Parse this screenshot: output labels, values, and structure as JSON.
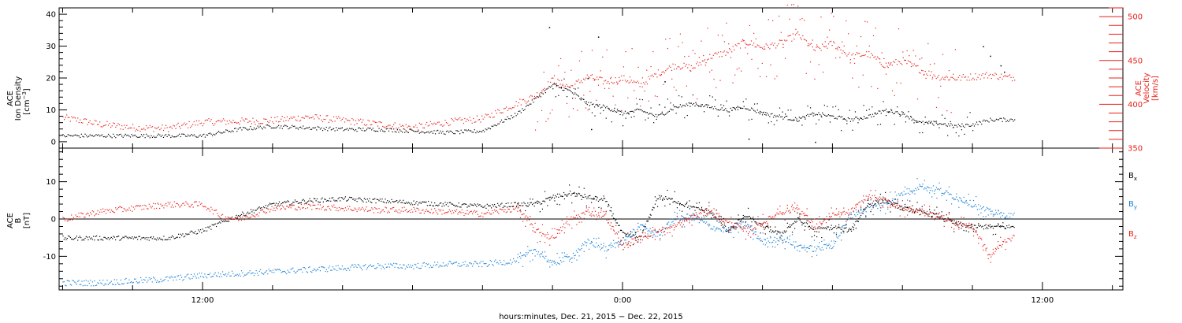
{
  "colors": {
    "black_series": "#000000",
    "velocity": "#e8201a",
    "by": "#1c80d4",
    "bz": "#e8201a",
    "axis": "#000000"
  },
  "x_axis": {
    "title": "hours:minutes, Dec. 21, 2015 − Dec. 22, 2015",
    "range_hours": [
      7.9,
      38.3
    ],
    "major_ticks": [
      {
        "hours": 12,
        "label": "12:00"
      },
      {
        "hours": 24,
        "label": "0:00"
      },
      {
        "hours": 36,
        "label": "12:00"
      }
    ],
    "minor_step_hours": 2
  },
  "chart_data": [
    {
      "type": "scatter",
      "panel": "top",
      "ylabel_left": {
        "line1": "ACE",
        "line2": "Ion Density",
        "units": "[cm",
        "units_sup": "−3",
        "units_end": "]"
      },
      "ylabel_right": {
        "line1": "ACE",
        "line2": "Velocity",
        "units": "[km/s]"
      },
      "ylim_left": [
        -2,
        42
      ],
      "yticks_left": [
        0,
        10,
        20,
        30,
        40
      ],
      "ylim_right": [
        350,
        510
      ],
      "yticks_right": [
        350,
        400,
        450,
        500
      ],
      "series": [
        {
          "key": "density",
          "axis": "left",
          "x": [
            8,
            9,
            10,
            11,
            12,
            13,
            14,
            15,
            16,
            17,
            18,
            19,
            20,
            21,
            22,
            22.5,
            23,
            23.5,
            24,
            24.5,
            25,
            25.5,
            26,
            26.5,
            27,
            27.5,
            28,
            28.5,
            29,
            29.5,
            30,
            30.5,
            31,
            31.5,
            32,
            32.5,
            33,
            33.5,
            34,
            34.5,
            35
          ],
          "y": [
            2,
            2,
            2,
            2,
            2,
            4,
            5,
            4.5,
            4,
            4,
            3.5,
            3,
            3.5,
            9,
            18,
            16,
            12,
            11,
            9,
            10,
            8,
            11,
            12,
            11,
            10,
            11,
            9,
            8,
            7,
            9,
            8,
            7,
            8,
            10,
            9,
            6,
            6,
            5,
            5.5,
            7,
            7
          ],
          "outliers": [
            {
              "x": 21.9,
              "y": 36
            },
            {
              "x": 23.3,
              "y": 33
            },
            {
              "x": 23.0,
              "y": 20
            },
            {
              "x": 25.2,
              "y": 19
            },
            {
              "x": 34.3,
              "y": 30
            },
            {
              "x": 34.5,
              "y": 27
            },
            {
              "x": 34.8,
              "y": 24
            },
            {
              "x": 34.9,
              "y": 22
            },
            {
              "x": 27.6,
              "y": 1
            },
            {
              "x": 29.5,
              "y": 0
            },
            {
              "x": 23.1,
              "y": 4
            }
          ]
        },
        {
          "key": "velocity",
          "axis": "right",
          "x": [
            8,
            8.5,
            9,
            10,
            11,
            12,
            13,
            14,
            15,
            16,
            17,
            18,
            19,
            20,
            21,
            21.5,
            22,
            22.5,
            23,
            23.5,
            24,
            24.5,
            25,
            25.5,
            26,
            26.5,
            27,
            27.5,
            28,
            28.5,
            29,
            29.5,
            30,
            30.5,
            31,
            31.5,
            32,
            32.5,
            33,
            33.5,
            34,
            34.5,
            35
          ],
          "y": [
            385,
            382,
            378,
            374,
            373,
            380,
            381,
            382,
            386,
            382,
            378,
            374,
            380,
            384,
            402,
            410,
            428,
            420,
            432,
            426,
            430,
            422,
            436,
            445,
            442,
            455,
            460,
            472,
            465,
            470,
            480,
            462,
            470,
            455,
            458,
            445,
            450,
            440,
            432,
            430,
            432,
            434,
            431
          ],
          "spread": 25
        }
      ]
    },
    {
      "type": "scatter",
      "panel": "bottom",
      "ylabel_left": {
        "line1": "ACE",
        "line2": "B",
        "units": "[nT]"
      },
      "ylim": [
        -19,
        19
      ],
      "yticks": [
        -10,
        0,
        10
      ],
      "zero_line": true,
      "legend": [
        {
          "label": "B",
          "sub": "x",
          "color": "#000000"
        },
        {
          "label": "B",
          "sub": "y",
          "color": "#1c80d4"
        },
        {
          "label": "B",
          "sub": "z",
          "color": "#e8201a"
        }
      ],
      "series": [
        {
          "key": "Bx",
          "x": [
            8,
            9,
            10,
            11,
            12,
            12.5,
            13,
            14,
            15,
            16,
            17,
            18,
            19,
            20,
            21,
            21.5,
            22,
            22.5,
            23,
            23.5,
            24,
            24.5,
            25,
            25.5,
            26,
            26.5,
            27,
            27.5,
            28,
            28.5,
            29,
            29.5,
            30,
            30.5,
            31,
            31.5,
            32,
            32.5,
            33,
            33.5,
            34,
            34.5,
            35
          ],
          "y": [
            -5,
            -5,
            -5,
            -5,
            -3,
            -1,
            1,
            4,
            5,
            5.5,
            5,
            4.5,
            4,
            3.5,
            4,
            4,
            6,
            7,
            6,
            5,
            -4,
            -5,
            6,
            5,
            3,
            2,
            -3,
            1,
            -2,
            -4,
            0,
            -3,
            -2,
            -3,
            4,
            5,
            3,
            2,
            1,
            -1,
            -2,
            -2,
            -2
          ]
        },
        {
          "key": "By",
          "x": [
            8,
            9,
            10,
            11,
            12,
            13,
            14,
            15,
            16,
            17,
            18,
            19,
            20,
            21,
            21.5,
            22,
            22.5,
            23,
            23.5,
            24,
            24.5,
            25,
            25.5,
            26,
            26.5,
            27,
            27.5,
            28,
            28.5,
            29,
            29.5,
            30,
            30.5,
            31,
            31.5,
            32,
            32.5,
            33,
            33.5,
            34,
            34.5,
            35
          ],
          "y": [
            -17,
            -17,
            -16.5,
            -16,
            -15,
            -14.5,
            -14,
            -13.5,
            -13,
            -12.5,
            -12.5,
            -12,
            -12,
            -11,
            -8,
            -12,
            -10,
            -6,
            -8,
            -6,
            -2,
            -4,
            0,
            1,
            -2,
            -3,
            -1,
            -6,
            -5,
            -7,
            -8,
            -7,
            1,
            3,
            4,
            7,
            9,
            8,
            6,
            4,
            2,
            1
          ]
        },
        {
          "key": "Bz",
          "x": [
            8,
            9,
            10,
            11,
            12,
            12.5,
            13,
            14,
            15,
            16,
            17,
            18,
            19,
            20,
            21,
            21.5,
            22,
            22.5,
            23,
            23.5,
            24,
            24.5,
            25,
            25.5,
            26,
            26.5,
            27,
            27.5,
            28,
            28.5,
            29,
            29.5,
            30,
            30.5,
            31,
            31.5,
            32,
            32.5,
            33,
            33.5,
            34,
            34.5,
            35
          ],
          "y": [
            0,
            2,
            3,
            4,
            4,
            1,
            0,
            3,
            3.5,
            3,
            2.5,
            2.5,
            2,
            1.5,
            3,
            -3,
            -5,
            0,
            2,
            1,
            -7,
            -5,
            -3,
            -2,
            1,
            2,
            -1,
            -3,
            -1,
            2,
            3,
            -2,
            1,
            2,
            6,
            5,
            3,
            2,
            1,
            -1,
            -2,
            -10,
            -5
          ]
        }
      ]
    }
  ]
}
